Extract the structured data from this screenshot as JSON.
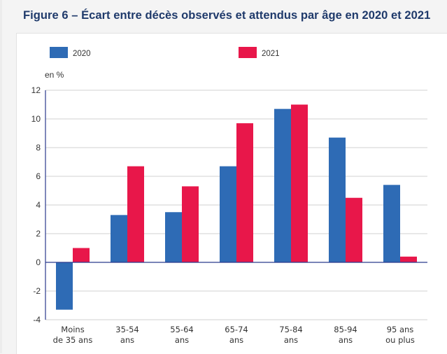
{
  "title": "Figure 6 – Écart entre décès observés et attendus par âge en 2020 et 2021",
  "chart_data": {
    "type": "bar",
    "title": "Figure 6 – Écart entre décès observés et attendus par âge en 2020 et 2021",
    "ylabel": "en %",
    "xlabel": "",
    "ylim": [
      -4,
      12
    ],
    "yticks": [
      -4,
      -2,
      0,
      2,
      4,
      6,
      8,
      10,
      12
    ],
    "grid": true,
    "legend_position": "top",
    "categories": [
      [
        "Moins",
        "de 35 ans"
      ],
      [
        "35-54",
        "ans"
      ],
      [
        "55-64",
        "ans"
      ],
      [
        "65-74",
        "ans"
      ],
      [
        "75-84",
        "ans"
      ],
      [
        "85-94",
        "ans"
      ],
      [
        "95 ans",
        "ou plus"
      ]
    ],
    "series": [
      {
        "name": "2020",
        "color": "#2e6bb5",
        "values": [
          -3.3,
          3.3,
          3.5,
          6.7,
          10.7,
          8.7,
          5.4
        ]
      },
      {
        "name": "2021",
        "color": "#e8174a",
        "values": [
          1.0,
          6.7,
          5.3,
          9.7,
          11.0,
          4.5,
          0.4
        ]
      }
    ]
  }
}
